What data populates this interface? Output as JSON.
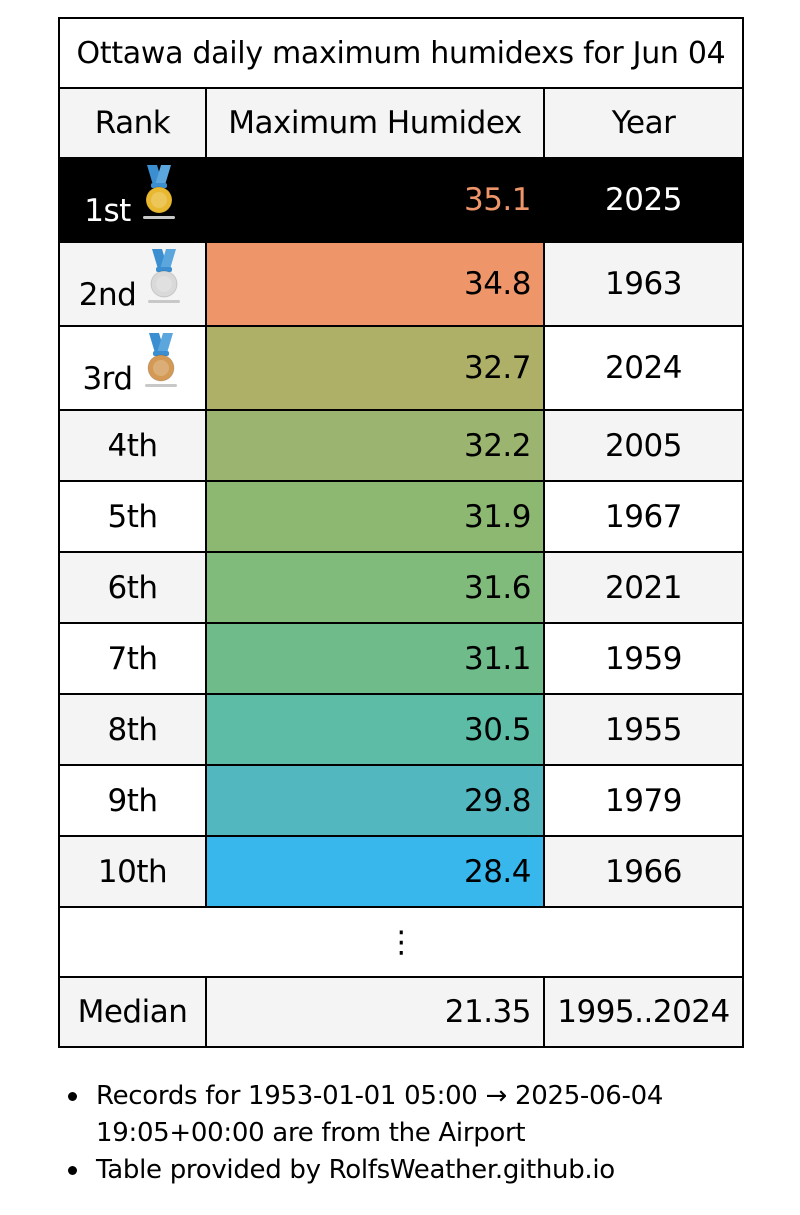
{
  "table": {
    "title": "Ottawa daily maximum humidexs for Jun 04",
    "headers": {
      "rank": "Rank",
      "value": "Maximum Humidex",
      "year": "Year"
    },
    "rows": [
      {
        "rank": "1st",
        "value": "35.1",
        "year": "2025",
        "medal": "gold-medal-icon",
        "color": "#000000"
      },
      {
        "rank": "2nd",
        "value": "34.8",
        "year": "1963",
        "medal": "silver-medal-icon",
        "color": "#ee9669"
      },
      {
        "rank": "3rd",
        "value": "32.7",
        "year": "2024",
        "medal": "bronze-medal-icon",
        "color": "#adb066"
      },
      {
        "rank": "4th",
        "value": "32.2",
        "year": "2005",
        "color": "#9bb46f"
      },
      {
        "rank": "5th",
        "value": "31.9",
        "year": "1967",
        "color": "#8db872"
      },
      {
        "rank": "6th",
        "value": "31.6",
        "year": "2021",
        "color": "#80bb7b"
      },
      {
        "rank": "7th",
        "value": "31.1",
        "year": "1959",
        "color": "#6fbb8a"
      },
      {
        "rank": "8th",
        "value": "30.5",
        "year": "1955",
        "color": "#5dbca5"
      },
      {
        "rank": "9th",
        "value": "29.8",
        "year": "1979",
        "color": "#53b7c0"
      },
      {
        "rank": "10th",
        "value": "28.4",
        "year": "1966",
        "color": "#37b7eb"
      }
    ],
    "ellipsis": "⋮",
    "median": {
      "label": "Median",
      "value": "21.35",
      "years": "1995..2024"
    }
  },
  "notes": [
    "Records for 1953-01-01 05:00 → 2025-06-04 19:05+00:00 are from the Airport",
    "Table provided by RolfsWeather.github.io"
  ],
  "colors": {
    "first_value_text": "#ee9669",
    "gold": "#e8b830",
    "silver": "#d9d9d9",
    "bronze": "#d49a55",
    "ribbon": "#3b8fd0"
  }
}
